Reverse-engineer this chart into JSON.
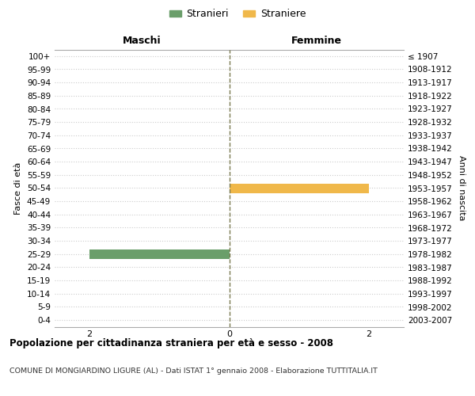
{
  "age_groups": [
    "100+",
    "95-99",
    "90-94",
    "85-89",
    "80-84",
    "75-79",
    "70-74",
    "65-69",
    "60-64",
    "55-59",
    "50-54",
    "45-49",
    "40-44",
    "35-39",
    "30-34",
    "25-29",
    "20-24",
    "15-19",
    "10-14",
    "5-9",
    "0-4"
  ],
  "birth_years": [
    "≤ 1907",
    "1908-1912",
    "1913-1917",
    "1918-1922",
    "1923-1927",
    "1928-1932",
    "1933-1937",
    "1938-1942",
    "1943-1947",
    "1948-1952",
    "1953-1957",
    "1958-1962",
    "1963-1967",
    "1968-1972",
    "1973-1977",
    "1978-1982",
    "1983-1987",
    "1988-1992",
    "1993-1997",
    "1998-2002",
    "2003-2007"
  ],
  "males": [
    0,
    0,
    0,
    0,
    0,
    0,
    0,
    0,
    0,
    0,
    0,
    0,
    0,
    0,
    0,
    2,
    0,
    0,
    0,
    0,
    0
  ],
  "females": [
    0,
    0,
    0,
    0,
    0,
    0,
    0,
    0,
    0,
    0,
    2,
    0,
    0,
    0,
    0,
    0,
    0,
    0,
    0,
    0,
    0
  ],
  "male_color": "#6a9e6a",
  "female_color": "#f0b84a",
  "xlim": 2.5,
  "ylabel_left": "Fasce di età",
  "ylabel_right": "Anni di nascita",
  "title_main": "Popolazione per cittadinanza straniera per età e sesso - 2008",
  "title_sub": "COMUNE DI MONGIARDINO LIGURE (AL) - Dati ISTAT 1° gennaio 2008 - Elaborazione TUTTITALIA.IT",
  "legend_male": "Stranieri",
  "legend_female": "Straniere",
  "header_left": "Maschi",
  "header_right": "Femmine",
  "bg_color": "#ffffff",
  "grid_color": "#cccccc",
  "center_line_color": "#7a7a50",
  "bar_height": 0.72
}
